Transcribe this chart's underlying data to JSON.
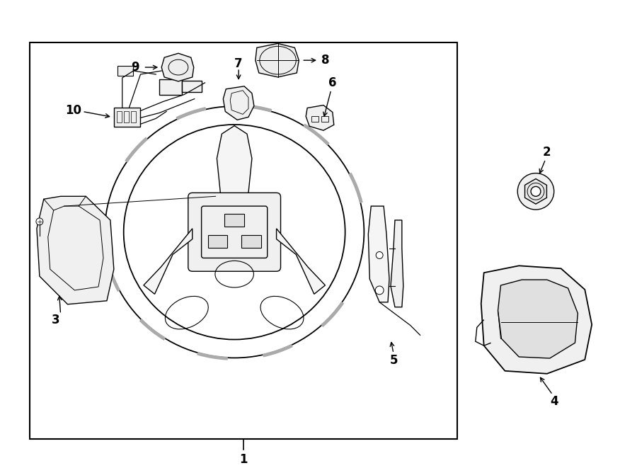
{
  "bg_color": "#ffffff",
  "line_color": "#000000",
  "fig_width": 9.0,
  "fig_height": 6.61,
  "dpi": 100,
  "label_1": "1",
  "label_2": "2",
  "label_3": "3",
  "label_4": "4",
  "label_5": "5",
  "label_6": "6",
  "label_7": "7",
  "label_8": "8",
  "label_9": "9",
  "label_10": "10"
}
